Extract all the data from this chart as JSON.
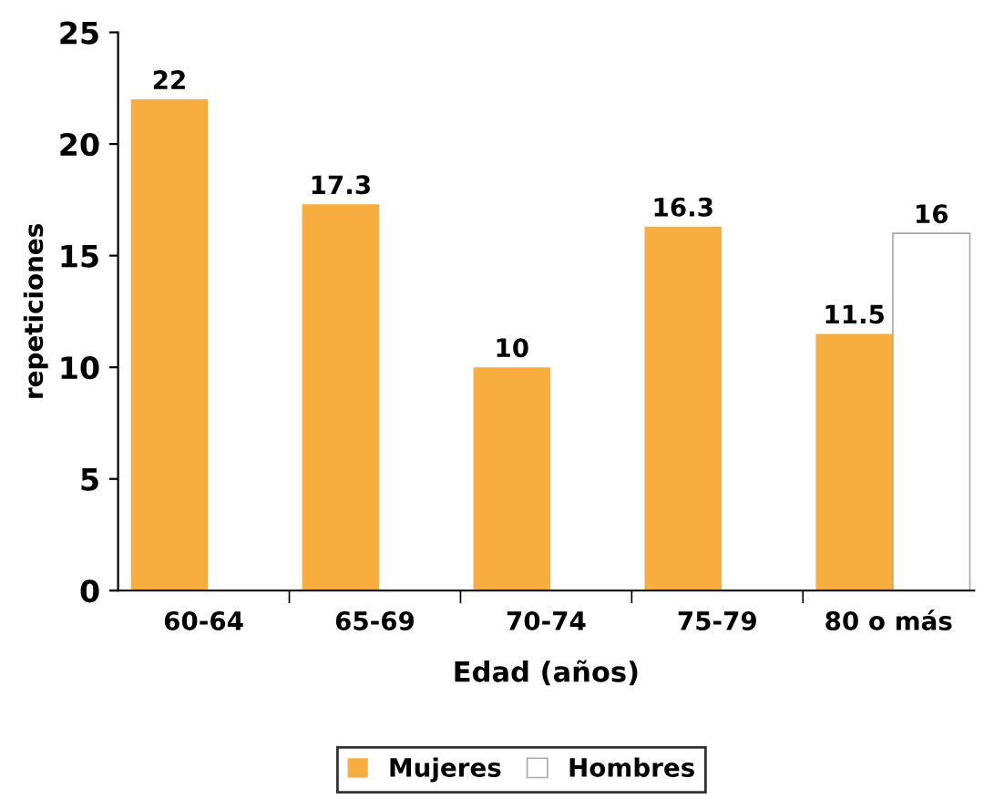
{
  "chart_data": {
    "type": "bar",
    "xlabel": "Edad (años)",
    "ylabel": "repeticiones",
    "categories": [
      "60-64",
      "65-69",
      "70-74",
      "75-79",
      "80 o más"
    ],
    "series": [
      {
        "name": "Mujeres",
        "color": "#f8ae3f",
        "values": [
          22,
          17.3,
          10,
          16.3,
          11.5
        ]
      },
      {
        "name": "Hombres",
        "color": "#ffffff",
        "values": [
          null,
          null,
          null,
          null,
          16
        ]
      }
    ],
    "ylim": [
      0,
      25
    ],
    "yticks": [
      0,
      5,
      10,
      15,
      20,
      25
    ],
    "data_labels": true,
    "legend": "bottom",
    "grid": false
  }
}
